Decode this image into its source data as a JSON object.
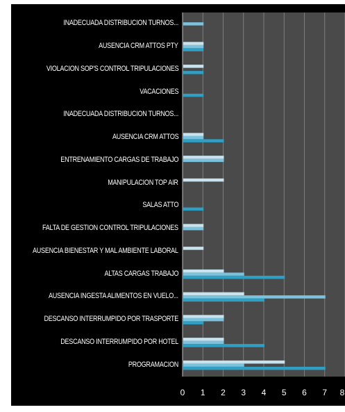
{
  "chart_data": {
    "type": "bar",
    "orientation": "horizontal",
    "categories": [
      "INADECUADA DISTRIBUCION TURNOS...",
      "AUSENCIA CRM ATTOS PTY",
      "VIOLACION SOP'S CONTROL TRIPULACIONES",
      "VACACIONES",
      "INADECUADA DISTRIBUCION TURNOS...",
      "AUSENCIA CRM ATTOS",
      "ENTRENAMIENTO CARGAS DE TRABAJO",
      "MANIPULACION TOP AIR",
      "SALAS ATTO",
      "FALTA DE GESTION CONTROL TRIPULACIONES",
      "AUSENCIA BIENESTAR Y MAL AMBIENTE LABORAL",
      "ALTAS CARGAS TRABAJO",
      "AUSENCIA INGESTA ALIMENTOS EN VUELO...",
      "DESCANSO INTERRUMPIDO POR TRASPORTE",
      "DESCANSO INTERRUMPIDO POR HOTEL",
      "PROGRAMACION"
    ],
    "series": [
      {
        "values": [
          0,
          1,
          1,
          0,
          0,
          1,
          2,
          2,
          0,
          1,
          1,
          2,
          3,
          2,
          2,
          5
        ]
      },
      {
        "values": [
          1,
          1,
          0,
          0,
          0,
          1,
          2,
          0,
          0,
          1,
          0,
          3,
          7,
          2,
          2,
          3
        ]
      },
      {
        "values": [
          0,
          1,
          1,
          1,
          0,
          2,
          0,
          0,
          1,
          0,
          0,
          5,
          4,
          1,
          4,
          7
        ]
      }
    ],
    "series_colors": [
      "#c9e3ee",
      "#7cc2dc",
      "#2f9fc4"
    ],
    "xlim": [
      0,
      8
    ],
    "xticks": [
      "0",
      "1",
      "2",
      "3",
      "4",
      "5",
      "6",
      "7",
      "8"
    ],
    "grid": true,
    "title": "",
    "xlabel": "",
    "ylabel": ""
  }
}
